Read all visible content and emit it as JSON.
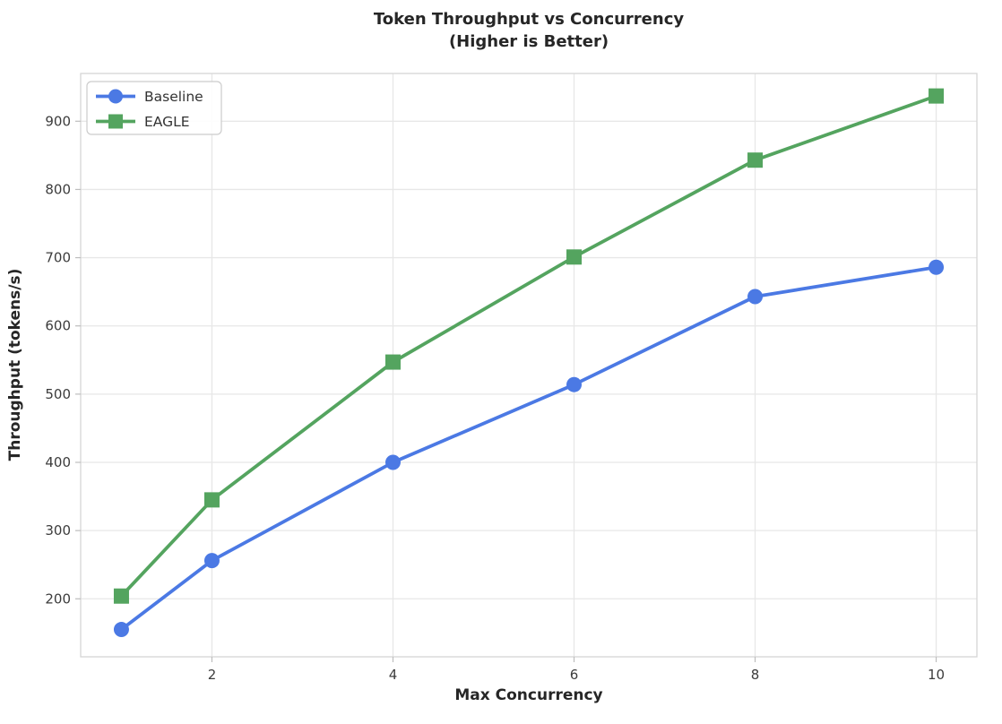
{
  "chart_data": {
    "type": "line",
    "title": "Token Throughput vs Concurrency",
    "subtitle": "(Higher is Better)",
    "xlabel": "Max Concurrency",
    "ylabel": "Throughput (tokens/s)",
    "x": [
      1,
      2,
      4,
      6,
      8,
      10
    ],
    "series": [
      {
        "name": "Baseline",
        "marker": "circle",
        "color": "#4b79e4",
        "values": [
          155,
          256,
          400,
          514,
          643,
          686
        ]
      },
      {
        "name": "EAGLE",
        "marker": "square",
        "color": "#54a45f",
        "values": [
          204,
          345,
          547,
          701,
          843,
          937
        ]
      }
    ],
    "x_ticks": [
      2,
      4,
      6,
      8,
      10
    ],
    "y_ticks": [
      200,
      300,
      400,
      500,
      600,
      700,
      800,
      900
    ],
    "xlim": [
      0.55,
      10.45
    ],
    "ylim": [
      115,
      970
    ],
    "grid": true,
    "legend_position": "upper-left",
    "colors": {
      "grid": "#e7e7e7",
      "frame": "#d6d6d6",
      "tick_mark": "#bdbdbd",
      "tick_label": "#3c3c3c",
      "title_text": "#262626",
      "legend_border": "#cccccc",
      "legend_text": "#333333"
    }
  }
}
